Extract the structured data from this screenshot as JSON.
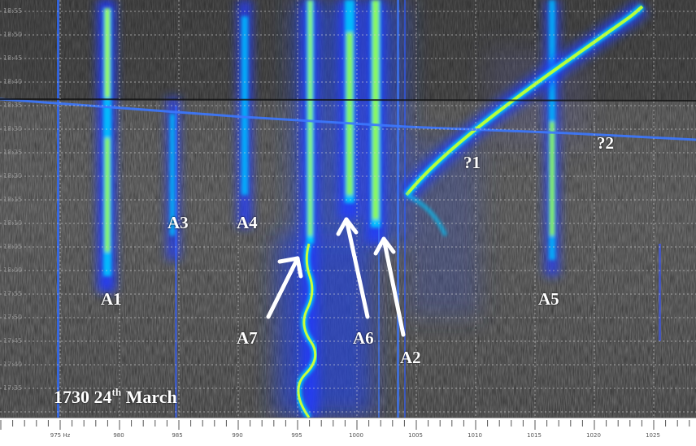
{
  "time_labels": [
    "18:55",
    "18:50",
    "18:45",
    "18:40",
    "18:35",
    "18:30",
    "18:25",
    "18:20",
    "18:15",
    "18:10",
    "18:05",
    "18:00",
    "17:55",
    "17:50",
    "17:45",
    "17:40",
    "17:35"
  ],
  "frequency_labels": [
    "975 Hz",
    "980",
    "985",
    "990",
    "995",
    "1000",
    "1005",
    "1010",
    "1015",
    "1020",
    "1025"
  ],
  "trace_labels": {
    "A1": "A1",
    "A2": "A2",
    "A3": "A3",
    "A4": "A4",
    "A5": "A5",
    "A6": "A6",
    "A7": "A7",
    "q1": "?1",
    "q2": "?2"
  },
  "caption": {
    "time": "1730 24",
    "superscript": "th",
    "month": "March"
  },
  "colors": {
    "background": "#333333",
    "trace_low": "#1a3cff",
    "trace_mid": "#00c8ff",
    "trace_peak": "#9bff3a",
    "grid": "#d8d8d8"
  }
}
